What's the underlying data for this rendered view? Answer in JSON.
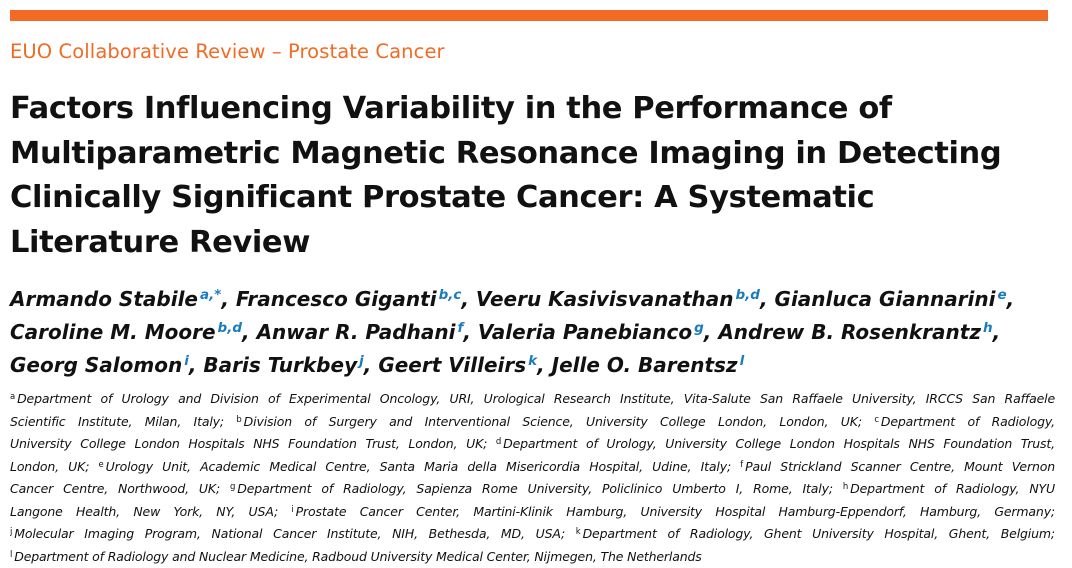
{
  "header": {
    "series": "EUO Collaborative Review – Prostate Cancer",
    "accent_color": "#f26b25",
    "link_color": "#1a7cbf"
  },
  "title": {
    "lines": [
      "Factors Influencing Variability in the Performance of",
      "Multiparametric Magnetic Resonance Imaging in Detecting",
      "Clinically Significant Prostate Cancer: A Systematic",
      "Literature Review"
    ]
  },
  "authors": [
    {
      "name": "Armando Stabile",
      "aff": "a,*"
    },
    {
      "name": "Francesco Giganti",
      "aff": "b,c"
    },
    {
      "name": "Veeru Kasivisvanathan",
      "aff": "b,d"
    },
    {
      "name": "Gianluca Giannarini",
      "aff": "e"
    },
    {
      "name": "Caroline M. Moore",
      "aff": "b,d"
    },
    {
      "name": "Anwar R. Padhani",
      "aff": "f"
    },
    {
      "name": "Valeria Panebianco",
      "aff": "g"
    },
    {
      "name": "Andrew B. Rosenkrantz",
      "aff": "h"
    },
    {
      "name": "Georg Salomon",
      "aff": "i"
    },
    {
      "name": "Baris Turkbey",
      "aff": "j"
    },
    {
      "name": "Geert Villeirs",
      "aff": "k"
    },
    {
      "name": "Jelle O. Barentsz",
      "aff": "l"
    }
  ],
  "affiliation_lines": [
    [
      {
        "sup": "a",
        "text": "Department of Urology and Division of Experimental Oncology, URI, Urological Research Institute, Vita-Salute San Raffaele University, IRCCS San Raffaele"
      }
    ],
    [
      {
        "sup": "",
        "text": "Scientific Institute, Milan, Italy; "
      },
      {
        "sup": "b",
        "text": "Division of Surgery and Interventional Science, University College London, London, UK; "
      },
      {
        "sup": "c",
        "text": "Department of Radiology,"
      }
    ],
    [
      {
        "sup": "",
        "text": "University College London Hospitals NHS Foundation Trust, London, UK; "
      },
      {
        "sup": "d",
        "text": "Department of Urology, University College London Hospitals NHS Foundation Trust,"
      }
    ],
    [
      {
        "sup": "",
        "text": "London, UK; "
      },
      {
        "sup": "e",
        "text": "Urology Unit, Academic Medical Centre, Santa Maria della Misericordia Hospital, Udine, Italy; "
      },
      {
        "sup": "f",
        "text": "Paul Strickland Scanner Centre, Mount Vernon"
      }
    ],
    [
      {
        "sup": "",
        "text": "Cancer Centre, Northwood, UK; "
      },
      {
        "sup": "g",
        "text": "Department of Radiology, Sapienza Rome University, Policlinico Umberto I, Rome, Italy; "
      },
      {
        "sup": "h",
        "text": "Department of Radiology, NYU"
      }
    ],
    [
      {
        "sup": "",
        "text": "Langone Health, New York, NY, USA; "
      },
      {
        "sup": "i",
        "text": "Prostate Cancer Center, Martini-Klinik Hamburg, University Hospital Hamburg-Eppendorf, Hamburg, Germany;"
      }
    ],
    [
      {
        "sup": "j",
        "text": "Molecular Imaging Program, National Cancer Institute, NIH, Bethesda, MD, USA; "
      },
      {
        "sup": "k",
        "text": "Department of Radiology, Ghent University Hospital, Ghent, Belgium;"
      }
    ],
    [
      {
        "sup": "l",
        "text": "Department of Radiology and Nuclear Medicine, Radboud University Medical Center, Nijmegen, The Netherlands"
      }
    ]
  ]
}
